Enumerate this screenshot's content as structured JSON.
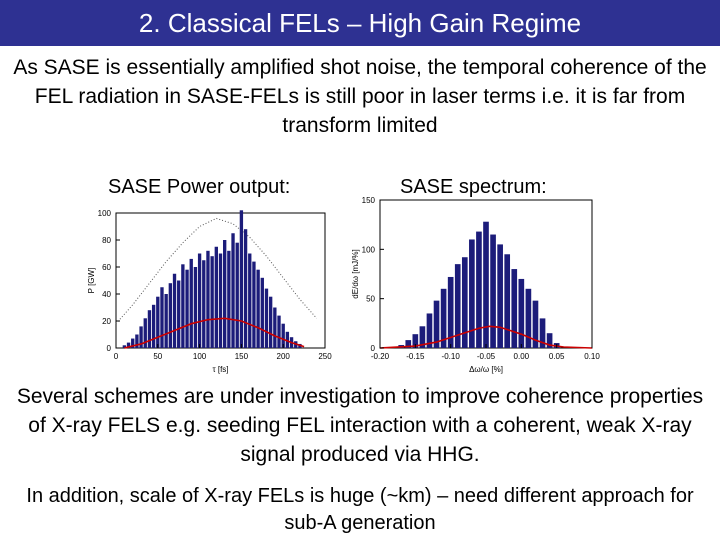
{
  "slide": {
    "title": "2. Classical FELs – High Gain Regime",
    "intro": "As SASE is essentially amplified shot noise, the temporal coherence of the FEL radiation in SASE-FELs is still poor in laser terms i.e. it is far from transform limited",
    "power_label": "SASE Power output:",
    "spectrum_label": "SASE spectrum:",
    "outro": "Several schemes are under investigation to improve coherence properties of X-ray FELS e.g. seeding FEL interaction with a coherent, weak X-ray signal produced via HHG.",
    "final": "In addition, scale of X-ray FELs is huge (~km) – need different approach for sub-A generation"
  },
  "colors": {
    "title_bg": "#2e3192",
    "bars": "#1c1c7a",
    "curve": "#cc0000"
  },
  "chart_data": [
    {
      "type": "bar",
      "xlabel": "τ [fs]",
      "ylabel": "P [GW]",
      "xlim": [
        0,
        250
      ],
      "ylim": [
        0,
        100
      ],
      "xticks": [
        0,
        50,
        100,
        150,
        200,
        250
      ],
      "xtick_labels": [
        "0",
        "50",
        "100",
        "150",
        "200",
        "250"
      ],
      "yticks": [
        0,
        20,
        40,
        60,
        80,
        100
      ],
      "ytick_labels": [
        "0",
        "20",
        "40",
        "60",
        "80",
        "100"
      ],
      "grid": false,
      "x": [
        10,
        15,
        20,
        25,
        30,
        35,
        40,
        45,
        50,
        55,
        60,
        65,
        70,
        75,
        80,
        85,
        90,
        95,
        100,
        105,
        110,
        115,
        120,
        125,
        130,
        135,
        140,
        145,
        150,
        155,
        160,
        165,
        170,
        175,
        180,
        185,
        190,
        195,
        200,
        205,
        210,
        215,
        220
      ],
      "values": [
        2,
        4,
        7,
        10,
        16,
        22,
        28,
        32,
        38,
        45,
        40,
        48,
        55,
        50,
        62,
        58,
        66,
        60,
        70,
        65,
        72,
        68,
        75,
        70,
        80,
        72,
        85,
        78,
        102,
        88,
        70,
        64,
        58,
        52,
        44,
        38,
        30,
        24,
        18,
        12,
        8,
        5,
        3
      ],
      "curve_x": [
        10,
        30,
        50,
        70,
        90,
        110,
        130,
        150,
        170,
        190,
        210,
        225
      ],
      "curve_y": [
        0,
        3,
        8,
        13,
        18,
        21,
        22,
        20,
        15,
        9,
        4,
        1
      ],
      "envelope_x": [
        0,
        20,
        40,
        60,
        80,
        100,
        120,
        140,
        160,
        180,
        200,
        220,
        240
      ],
      "envelope_y": [
        18,
        32,
        48,
        64,
        78,
        90,
        96,
        92,
        82,
        68,
        52,
        36,
        22
      ]
    },
    {
      "type": "bar",
      "xlabel": "Δω/ω [%]",
      "ylabel": "dE/dω [mJ/%]",
      "xlim": [
        -0.2,
        0.1
      ],
      "ylim": [
        0,
        150
      ],
      "xticks": [
        -0.2,
        -0.15,
        -0.1,
        -0.05,
        0,
        0.05,
        0.1
      ],
      "xtick_labels": [
        "-0.20",
        "-0.15",
        "-0.10",
        "-0.05",
        "0.00",
        "0.05",
        "0.10"
      ],
      "yticks": [
        0,
        50,
        100,
        150
      ],
      "ytick_labels": [
        "0",
        "50",
        "100",
        "150"
      ],
      "grid": false,
      "x": [
        -0.17,
        -0.16,
        -0.15,
        -0.14,
        -0.13,
        -0.12,
        -0.11,
        -0.1,
        -0.09,
        -0.08,
        -0.07,
        -0.06,
        -0.05,
        -0.04,
        -0.03,
        -0.02,
        -0.01,
        0,
        0.01,
        0.02,
        0.03,
        0.04,
        0.05
      ],
      "values": [
        3,
        8,
        14,
        22,
        35,
        48,
        60,
        72,
        85,
        92,
        110,
        118,
        128,
        115,
        105,
        95,
        80,
        70,
        60,
        48,
        30,
        15,
        5
      ],
      "curve_x": [
        -0.2,
        -0.15,
        -0.12,
        -0.09,
        -0.06,
        -0.045,
        -0.03,
        0,
        0.02,
        0.04,
        0.06,
        0.1
      ],
      "curve_y": [
        0,
        2,
        6,
        13,
        20,
        22,
        21,
        14,
        8,
        3,
        1,
        0
      ]
    }
  ]
}
